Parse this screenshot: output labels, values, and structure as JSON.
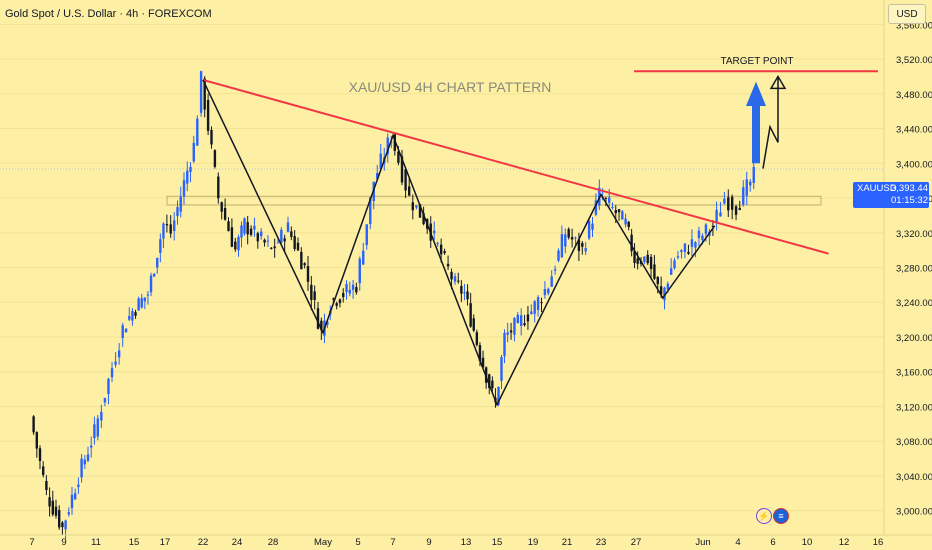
{
  "header": {
    "title": "Gold Spot / U.S. Dollar · 4h · FOREXCOM"
  },
  "currency_button": "USD",
  "price_tag": {
    "symbol": "XAUUSD",
    "price": "3,393.44",
    "countdown": "01:15:32"
  },
  "icons": [
    "lightning-icon",
    "flag-icon"
  ],
  "colors": {
    "background": "#fdf0a4",
    "up": "#2962ff",
    "down": "#131722",
    "trendline": "#f23645",
    "pattern": "#131722",
    "arrow": "#2a6ae8",
    "zone": "#bfb06c"
  },
  "chart_data": {
    "type": "candlestick",
    "title": "XAU/USD 4H CHART PATTERN",
    "xlabel": "",
    "ylabel": "",
    "y_ticks": [
      "3,000.00",
      "3,040.00",
      "3,080.00",
      "3,120.00",
      "3,160.00",
      "3,200.00",
      "3,240.00",
      "3,280.00",
      "3,320.00",
      "3,360.00",
      "3,400.00",
      "3,440.00",
      "3,480.00",
      "3,520.00",
      "3,560.00"
    ],
    "x_ticks": [
      "7",
      "9",
      "11",
      "15",
      "17",
      "22",
      "24",
      "28",
      "May",
      "5",
      "7",
      "9",
      "13",
      "15",
      "19",
      "21",
      "23",
      "27",
      "Jun",
      "4",
      "6",
      "10",
      "12",
      "16"
    ],
    "ylim": [
      2972,
      3588
    ],
    "annotations": [
      {
        "text": "TARGET POINT",
        "price": 3506
      }
    ],
    "target_line_price": 3506,
    "support_zone": [
      3352,
      3362
    ],
    "trendline": [
      {
        "date": "Apr 22",
        "price": 3496
      },
      {
        "date": "Jun 9",
        "price": 3308
      }
    ],
    "pattern_pivots": [
      {
        "date": "Apr 22",
        "price": 3496
      },
      {
        "date": "May 1",
        "price": 3205
      },
      {
        "date": "May 7",
        "price": 3432
      },
      {
        "date": "May 15",
        "price": 3122
      },
      {
        "date": "May 23",
        "price": 3364
      },
      {
        "date": "May 29",
        "price": 3245
      },
      {
        "date": "Jun 2",
        "price": 3328
      }
    ],
    "projection": [
      3394,
      3442,
      3424,
      3500
    ],
    "anchors": [
      {
        "date": "Apr 7",
        "price": 3108
      },
      {
        "date": "Apr 8",
        "price": 3020
      },
      {
        "date": "Apr 9",
        "price": 2980
      },
      {
        "date": "Apr 10",
        "price": 3040
      },
      {
        "date": "Apr 11",
        "price": 3090
      },
      {
        "date": "Apr 14",
        "price": 3210
      },
      {
        "date": "Apr 15",
        "price": 3230
      },
      {
        "date": "Apr 16",
        "price": 3250
      },
      {
        "date": "Apr 17",
        "price": 3330
      },
      {
        "date": "Apr 18",
        "price": 3320
      },
      {
        "date": "Apr 21",
        "price": 3420
      },
      {
        "date": "Apr 22",
        "price": 3496
      },
      {
        "date": "Apr 23",
        "price": 3360
      },
      {
        "date": "Apr 24",
        "price": 3300
      },
      {
        "date": "Apr 25",
        "price": 3330
      },
      {
        "date": "Apr 28",
        "price": 3300
      },
      {
        "date": "Apr 29",
        "price": 3325
      },
      {
        "date": "Apr 30",
        "price": 3280
      },
      {
        "date": "May 1",
        "price": 3205
      },
      {
        "date": "May 2",
        "price": 3240
      },
      {
        "date": "May 5",
        "price": 3260
      },
      {
        "date": "May 6",
        "price": 3380
      },
      {
        "date": "May 7",
        "price": 3432
      },
      {
        "date": "May 8",
        "price": 3360
      },
      {
        "date": "May 9",
        "price": 3330
      },
      {
        "date": "May 12",
        "price": 3260
      },
      {
        "date": "May 13",
        "price": 3250
      },
      {
        "date": "May 14",
        "price": 3180
      },
      {
        "date": "May 15",
        "price": 3122
      },
      {
        "date": "May 16",
        "price": 3200
      },
      {
        "date": "May 19",
        "price": 3230
      },
      {
        "date": "May 20",
        "price": 3260
      },
      {
        "date": "May 21",
        "price": 3320
      },
      {
        "date": "May 22",
        "price": 3300
      },
      {
        "date": "May 23",
        "price": 3364
      },
      {
        "date": "May 26",
        "price": 3330
      },
      {
        "date": "May 27",
        "price": 3290
      },
      {
        "date": "May 28",
        "price": 3290
      },
      {
        "date": "May 29",
        "price": 3245
      },
      {
        "date": "May 30",
        "price": 3290
      },
      {
        "date": "Jun 2",
        "price": 3328
      },
      {
        "date": "Jun 3",
        "price": 3360
      },
      {
        "date": "Jun 4",
        "price": 3350
      },
      {
        "date": "Jun 5",
        "price": 3385
      }
    ]
  }
}
